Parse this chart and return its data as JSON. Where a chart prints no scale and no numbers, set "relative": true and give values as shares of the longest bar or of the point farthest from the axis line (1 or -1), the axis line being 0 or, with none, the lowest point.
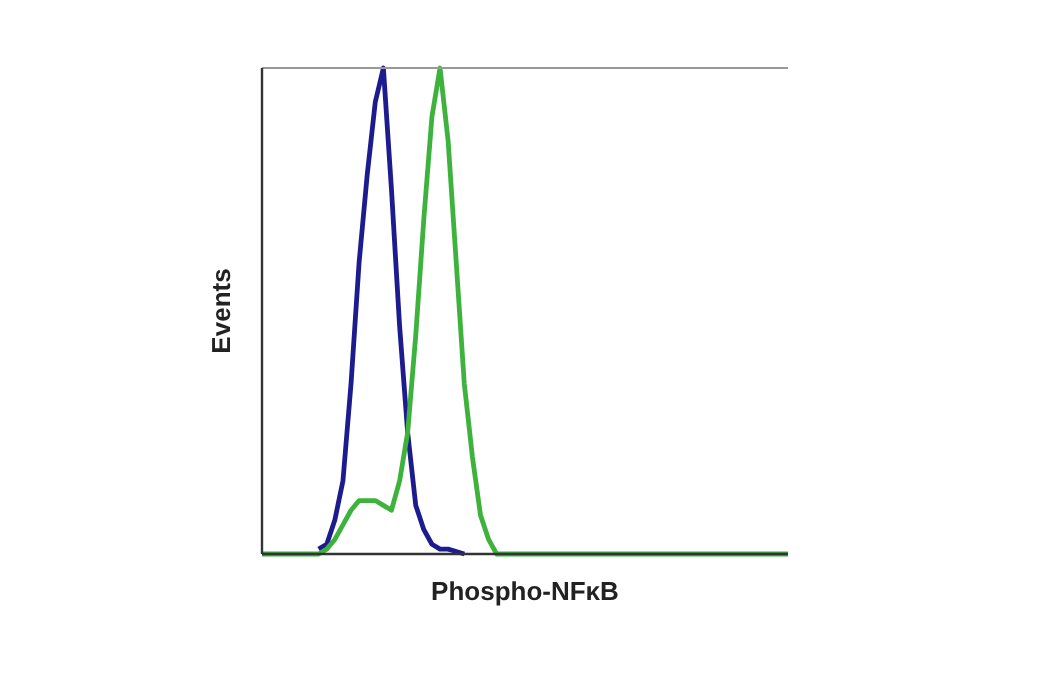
{
  "chart_data": {
    "type": "line",
    "relative": true,
    "xlabel": "Phospho-NFκB",
    "ylabel": "Events",
    "categories": [
      null,
      null,
      null,
      null,
      null,
      null,
      null,
      null,
      null,
      null,
      null,
      null,
      null,
      null,
      null,
      null,
      null,
      null,
      null,
      null,
      null,
      null,
      null,
      null,
      null,
      null,
      null,
      null,
      null,
      null,
      null,
      null,
      null,
      null,
      null,
      null,
      null,
      null,
      null,
      null,
      null,
      null,
      null,
      null,
      null,
      null,
      null,
      null,
      null,
      null,
      null,
      null,
      null,
      null,
      null,
      null,
      null,
      null,
      null,
      null,
      null,
      null,
      null,
      null,
      null,
      null
    ],
    "series": [
      {
        "color": "#1c1c8f",
        "values": [
          null,
          null,
          null,
          null,
          null,
          null,
          null,
          0.01,
          0.02,
          0.07,
          0.15,
          0.35,
          0.6,
          0.78,
          0.93,
          1,
          0.75,
          0.47,
          0.25,
          0.1,
          0.05,
          0.02,
          0.01,
          0.01,
          0.005,
          0,
          null,
          null,
          null,
          null,
          null,
          null,
          null,
          null,
          null,
          null,
          null,
          null,
          null,
          null,
          null,
          null,
          null,
          null,
          null,
          null,
          null,
          null,
          null,
          null,
          null,
          null,
          null,
          null,
          null,
          null,
          null,
          null,
          null,
          null,
          null,
          null,
          null,
          null,
          null,
          null
        ]
      },
      {
        "color": "#3db33d",
        "values": [
          0,
          0,
          0,
          0,
          0,
          0,
          0,
          0,
          0.01,
          0.03,
          0.06,
          0.09,
          0.11,
          0.11,
          0.11,
          0.1,
          0.09,
          0.15,
          0.25,
          0.45,
          0.69,
          0.9,
          1,
          0.85,
          0.6,
          0.35,
          0.2,
          0.08,
          0.03,
          0,
          0,
          0,
          0,
          0,
          0,
          0,
          0,
          0,
          0,
          0,
          0,
          0,
          0,
          0,
          0,
          0,
          0,
          0,
          0,
          0,
          0,
          0,
          0,
          0,
          0,
          0,
          0,
          0,
          0,
          0,
          0,
          0,
          0,
          0,
          0,
          0
        ]
      }
    ],
    "line_style": "solid",
    "marker": "none"
  }
}
